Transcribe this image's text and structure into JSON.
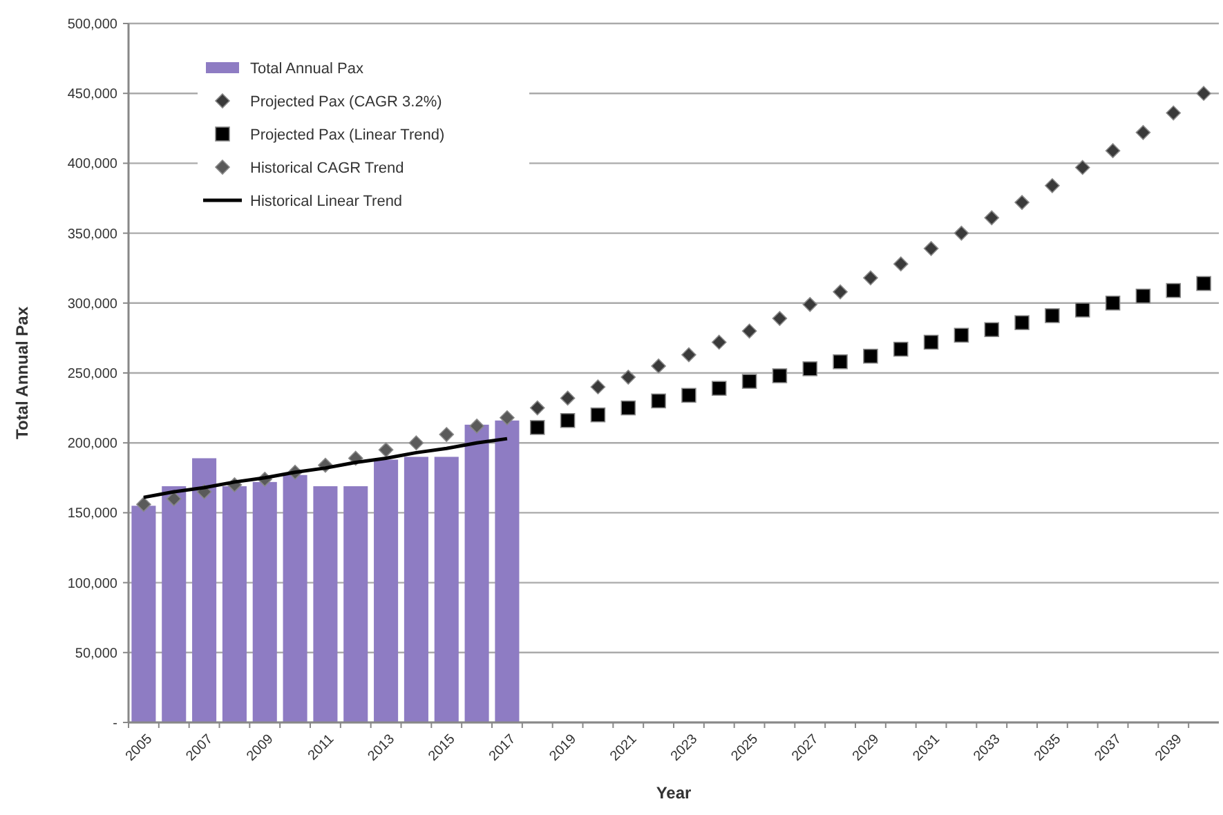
{
  "chart_data": {
    "type": "bar",
    "xlabel": "Year",
    "ylabel": "Total Annual Pax",
    "categories": [
      "2005",
      null,
      "2007",
      null,
      "2009",
      null,
      "2011",
      null,
      "2013",
      null,
      "2015",
      null,
      "2017",
      null,
      "2019",
      null,
      "2021",
      null,
      "2023",
      null,
      "2025",
      null,
      "2027",
      null,
      "2029",
      null,
      "2031",
      null,
      "2033",
      null,
      "2035",
      null,
      "2037",
      null,
      "2039",
      null
    ],
    "ylim": [
      0,
      500000
    ],
    "yticks": [
      {
        "value": 0,
        "label": "-"
      },
      {
        "value": 50000,
        "label": "50,000"
      },
      {
        "value": 100000,
        "label": "100,000"
      },
      {
        "value": 150000,
        "label": "150,000"
      },
      {
        "value": 200000,
        "label": "200,000"
      },
      {
        "value": 250000,
        "label": "250,000"
      },
      {
        "value": 300000,
        "label": "300,000"
      },
      {
        "value": 350000,
        "label": "350,000"
      },
      {
        "value": 400000,
        "label": "400,000"
      },
      {
        "value": 450000,
        "label": "450,000"
      },
      {
        "value": 500000,
        "label": "500,000"
      }
    ],
    "grid": "y",
    "legend": "top left",
    "series": [
      {
        "name": "Total Annual Pax",
        "color": "#8e7cc3",
        "values": [
          155000,
          169000,
          189000,
          169000,
          172000,
          177000,
          169000,
          169000,
          188000,
          190000,
          190000,
          213000,
          216000,
          null,
          null,
          null,
          null,
          null,
          null,
          null,
          null,
          null,
          null,
          null,
          null,
          null,
          null,
          null,
          null,
          null,
          null,
          null,
          null,
          null,
          null,
          null
        ]
      },
      {
        "name": "Projected Pax (CAGR 3.2%)",
        "type": "scatter",
        "marker": "diamond",
        "color": "#3a3a3a",
        "values": [
          null,
          null,
          null,
          null,
          null,
          null,
          null,
          null,
          null,
          null,
          null,
          null,
          null,
          225000,
          232000,
          240000,
          247000,
          255000,
          263000,
          272000,
          280000,
          289000,
          299000,
          308000,
          318000,
          328000,
          339000,
          350000,
          361000,
          372000,
          384000,
          397000,
          409000,
          422000,
          436000,
          450000
        ]
      },
      {
        "name": "Projected Pax (Linear Trend)",
        "type": "scatter",
        "marker": "square",
        "color": "#000000",
        "values": [
          null,
          null,
          null,
          null,
          null,
          null,
          null,
          null,
          null,
          null,
          null,
          null,
          null,
          211000,
          216000,
          220000,
          225000,
          230000,
          234000,
          239000,
          244000,
          248000,
          253000,
          258000,
          262000,
          267000,
          272000,
          277000,
          281000,
          286000,
          291000,
          295000,
          300000,
          305000,
          309000,
          314000
        ]
      },
      {
        "name": "Historical CAGR Trend",
        "type": "scatter",
        "marker": "diamond",
        "color": "#5a5a5a",
        "values": [
          156000,
          160000,
          165000,
          170000,
          174000,
          179000,
          184000,
          189000,
          195000,
          200000,
          206000,
          212000,
          218000,
          null,
          null,
          null,
          null,
          null,
          null,
          null,
          null,
          null,
          null,
          null,
          null,
          null,
          null,
          null,
          null,
          null,
          null,
          null,
          null,
          null,
          null,
          null
        ]
      },
      {
        "name": "Historical Linear Trend",
        "type": "line",
        "line_style": "solid",
        "color": "#000000",
        "values": [
          161000,
          165000,
          168000,
          172000,
          175000,
          179000,
          182000,
          186000,
          189000,
          193000,
          196000,
          200000,
          203000,
          null,
          null,
          null,
          null,
          null,
          null,
          null,
          null,
          null,
          null,
          null,
          null,
          null,
          null,
          null,
          null,
          null,
          null,
          null,
          null,
          null,
          null,
          null
        ]
      }
    ]
  }
}
